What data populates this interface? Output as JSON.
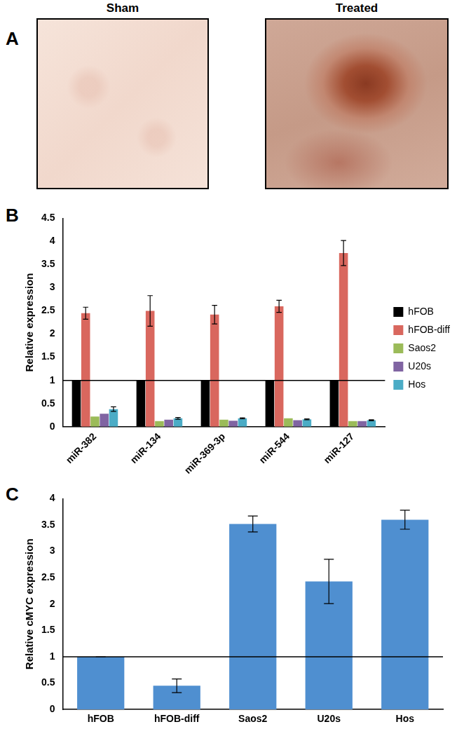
{
  "panel_labels": [
    "A",
    "B",
    "C"
  ],
  "images": [
    {
      "title": "Sham"
    },
    {
      "title": "Treated"
    }
  ],
  "chart_data": [
    {
      "type": "bar",
      "categories": [
        "miR-382",
        "miR-134",
        "miR-369-3p",
        "miR-544",
        "miR-127"
      ],
      "series": [
        {
          "name": "hFOB",
          "color": "#000000",
          "values": [
            1,
            1,
            1,
            1,
            1
          ]
        },
        {
          "name": "hFOB-diff",
          "color": "#d9675e",
          "values": [
            2.45,
            2.5,
            2.42,
            2.6,
            3.75
          ],
          "errors": [
            0.13,
            0.33,
            0.2,
            0.13,
            0.27
          ]
        },
        {
          "name": "Saos2",
          "color": "#9bbb59",
          "values": [
            0.22,
            0.12,
            0.15,
            0.18,
            0.12
          ]
        },
        {
          "name": "U20s",
          "color": "#8064a2",
          "values": [
            0.28,
            0.15,
            0.13,
            0.14,
            0.12
          ]
        },
        {
          "name": "Hos",
          "color": "#4bacc6",
          "values": [
            0.38,
            0.18,
            0.18,
            0.16,
            0.14
          ],
          "errors": [
            0.05,
            0.02,
            0.01,
            0.01,
            0.01
          ]
        }
      ],
      "ylim": [
        0,
        4.5
      ],
      "yticks": [
        0,
        0.5,
        1,
        1.5,
        2,
        2.5,
        3,
        3.5,
        4,
        4.5
      ],
      "y_label": "Relative expression",
      "hline": 1,
      "legend": "right",
      "grid": false
    },
    {
      "type": "bar",
      "categories": [
        "hFOB",
        "hFOB-diff",
        "Saos2",
        "U20s",
        "Hos"
      ],
      "values": [
        1,
        0.45,
        3.52,
        2.43,
        3.6
      ],
      "errors": [
        0,
        0.13,
        0.15,
        0.42,
        0.18
      ],
      "color": "#4f8fd0",
      "ylim": [
        0,
        4
      ],
      "yticks": [
        0,
        0.5,
        1,
        1.5,
        2,
        2.5,
        3,
        3.5,
        4
      ],
      "y_label": "Relative cMYC expression",
      "hline": 1,
      "grid": false
    }
  ]
}
